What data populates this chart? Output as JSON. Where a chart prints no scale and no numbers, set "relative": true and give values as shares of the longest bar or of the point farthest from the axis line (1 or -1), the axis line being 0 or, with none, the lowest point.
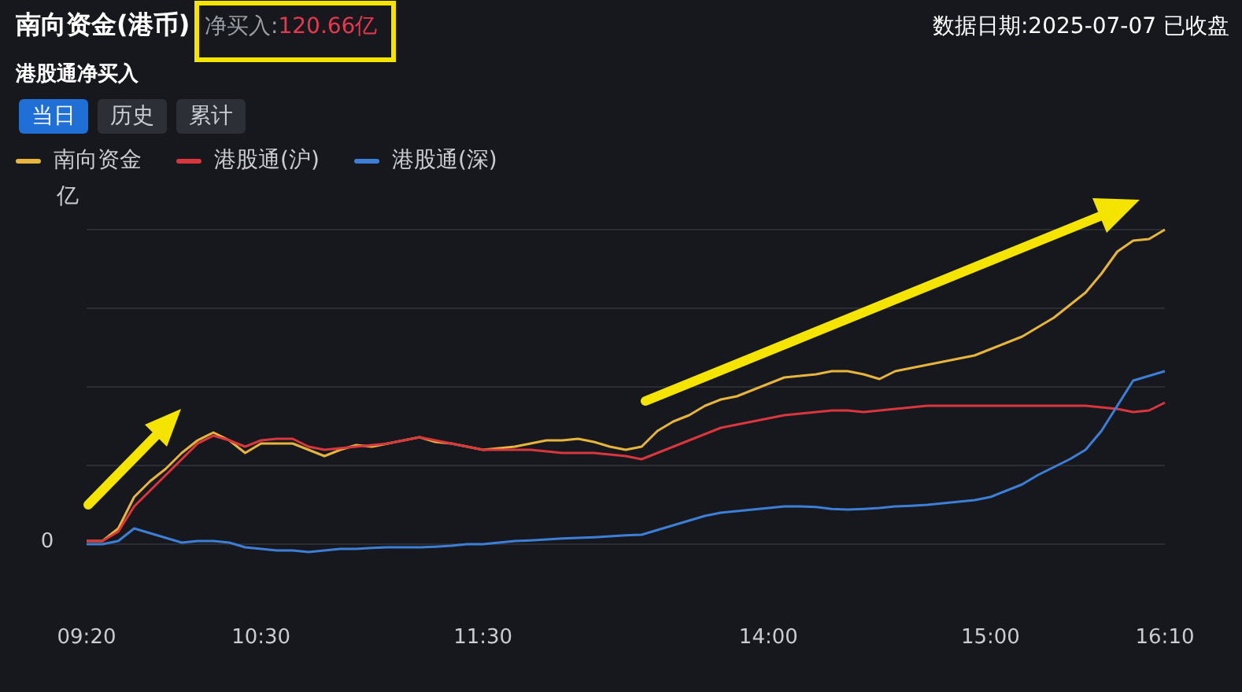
{
  "chart_data": {
    "type": "line",
    "title": "南向资金(港币)",
    "subtitle": "港股通净买入",
    "ylabel": "亿",
    "relative": true,
    "grid": "y",
    "legend": "top left",
    "marker": "none",
    "line_style": "solid",
    "annotations": [
      "净买入:120.66亿",
      "数据日期:2025-07-07 已收盘",
      "当日",
      "历史",
      "累计",
      "0"
    ],
    "categories": [
      "09:20",
      null,
      null,
      null,
      null,
      null,
      null,
      null,
      null,
      null,
      null,
      "10:30",
      null,
      null,
      null,
      null,
      null,
      null,
      null,
      null,
      null,
      null,
      null,
      null,
      null,
      "11:30",
      null,
      null,
      null,
      null,
      null,
      null,
      null,
      null,
      null,
      null,
      null,
      null,
      null,
      null,
      null,
      null,
      null,
      "14:00",
      null,
      null,
      null,
      null,
      null,
      null,
      null,
      null,
      null,
      null,
      null,
      null,
      null,
      "15:00",
      null,
      null,
      null,
      null,
      null,
      null,
      null,
      null,
      null,
      null,
      "16:10"
    ],
    "series": [
      {
        "name": "南向资金",
        "color": "#e8b53c",
        "values": [
          0.01,
          0.01,
          0.05,
          0.15,
          0.2,
          0.24,
          0.29,
          0.33,
          0.355,
          0.33,
          0.29,
          0.32,
          0.32,
          0.32,
          0.3,
          0.28,
          0.3,
          0.315,
          0.31,
          0.32,
          0.33,
          0.34,
          0.325,
          0.32,
          0.31,
          0.3,
          0.305,
          0.31,
          0.32,
          0.33,
          0.33,
          0.335,
          0.325,
          0.31,
          0.3,
          0.31,
          0.36,
          0.39,
          0.41,
          0.44,
          0.46,
          0.47,
          0.49,
          0.51,
          0.53,
          0.535,
          0.54,
          0.55,
          0.55,
          0.54,
          0.525,
          0.55,
          0.56,
          0.57,
          0.58,
          0.59,
          0.6,
          0.62,
          0.64,
          0.66,
          0.69,
          0.72,
          0.76,
          0.8,
          0.86,
          0.93,
          0.965,
          0.97,
          1
        ]
      },
      {
        "name": "港股通(沪)",
        "color": "#d9363e",
        "values": [
          0.01,
          0.01,
          0.04,
          0.12,
          0.17,
          0.22,
          0.27,
          0.32,
          0.345,
          0.33,
          0.31,
          0.33,
          0.335,
          0.335,
          0.31,
          0.3,
          0.305,
          0.31,
          0.315,
          0.32,
          0.33,
          0.34,
          0.33,
          0.32,
          0.31,
          0.3,
          0.3,
          0.3,
          0.3,
          0.295,
          0.29,
          0.29,
          0.29,
          0.285,
          0.28,
          0.27,
          0.29,
          0.31,
          0.33,
          0.35,
          0.37,
          0.38,
          0.39,
          0.4,
          0.41,
          0.415,
          0.42,
          0.425,
          0.425,
          0.42,
          0.425,
          0.43,
          0.435,
          0.44,
          0.44,
          0.44,
          0.44,
          0.44,
          0.44,
          0.44,
          0.44,
          0.44,
          0.44,
          0.44,
          0.435,
          0.43,
          0.42,
          0.425,
          0.45
        ]
      },
      {
        "name": "港股通(深)",
        "color": "#3d7fd6",
        "values": [
          0,
          0,
          0.01,
          0.05,
          0.035,
          0.02,
          0.005,
          0.01,
          0.01,
          0.005,
          -0.01,
          -0.015,
          -0.02,
          -0.02,
          -0.025,
          -0.02,
          -0.015,
          -0.015,
          -0.012,
          -0.01,
          -0.01,
          -0.01,
          -0.008,
          -0.005,
          0,
          0,
          0.005,
          0.01,
          0.012,
          0.015,
          0.018,
          0.02,
          0.022,
          0.025,
          0.028,
          0.03,
          0.045,
          0.06,
          0.075,
          0.09,
          0.1,
          0.105,
          0.11,
          0.115,
          0.12,
          0.12,
          0.118,
          0.112,
          0.11,
          0.112,
          0.115,
          0.12,
          0.122,
          0.125,
          0.13,
          0.135,
          0.14,
          0.15,
          0.17,
          0.19,
          0.22,
          0.245,
          0.27,
          0.3,
          0.36,
          0.44,
          0.52,
          0.535,
          0.55
        ]
      }
    ]
  }
}
